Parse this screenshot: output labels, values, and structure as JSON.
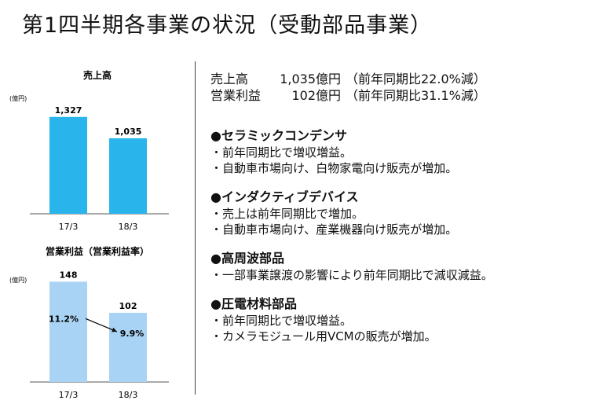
{
  "title": "第1四半期各事業の状況（受動部品事業）",
  "chart_data": [
    {
      "type": "bar",
      "title": "売上高",
      "unit": "(億円)",
      "categories": [
        "17/3",
        "18/3"
      ],
      "values": [
        1327,
        1035
      ],
      "value_labels": [
        "1,327",
        "1,035"
      ],
      "ylim": [
        0,
        1400
      ],
      "color": "#29B5EC"
    },
    {
      "type": "bar",
      "title": "営業利益（営業利益率）",
      "unit": "(億円)",
      "categories": [
        "17/3",
        "18/3"
      ],
      "values": [
        148,
        102
      ],
      "value_labels": [
        "148",
        "102"
      ],
      "margins": [
        "11.2%",
        "9.9%"
      ],
      "ylim": [
        0,
        160
      ],
      "color": "#A9D3F5"
    }
  ],
  "summary": [
    {
      "label": "売上高",
      "value": "1,035億円",
      "note": "（前年同期比22.0%減）"
    },
    {
      "label": "営業利益",
      "value": "102億円",
      "note": "（前年同期比31.1%減）"
    }
  ],
  "sections": [
    {
      "head": "●セラミックコンデンサ",
      "bullets": [
        "・前年同期比で増収増益。",
        "・自動車市場向け、白物家電向け販売が増加。"
      ]
    },
    {
      "head": "●インダクティブデバイス",
      "bullets": [
        "・売上は前年同期比で増加。",
        "・自動車市場向け、産業機器向け販売が増加。"
      ]
    },
    {
      "head": "●高周波部品",
      "bullets": [
        "・一部事業譲渡の影響により前年同期比で減収減益。"
      ]
    },
    {
      "head": "●圧電材料部品",
      "bullets": [
        "・前年同期比で増収増益。",
        "・カメラモジュール用VCMの販売が増加。"
      ]
    }
  ]
}
